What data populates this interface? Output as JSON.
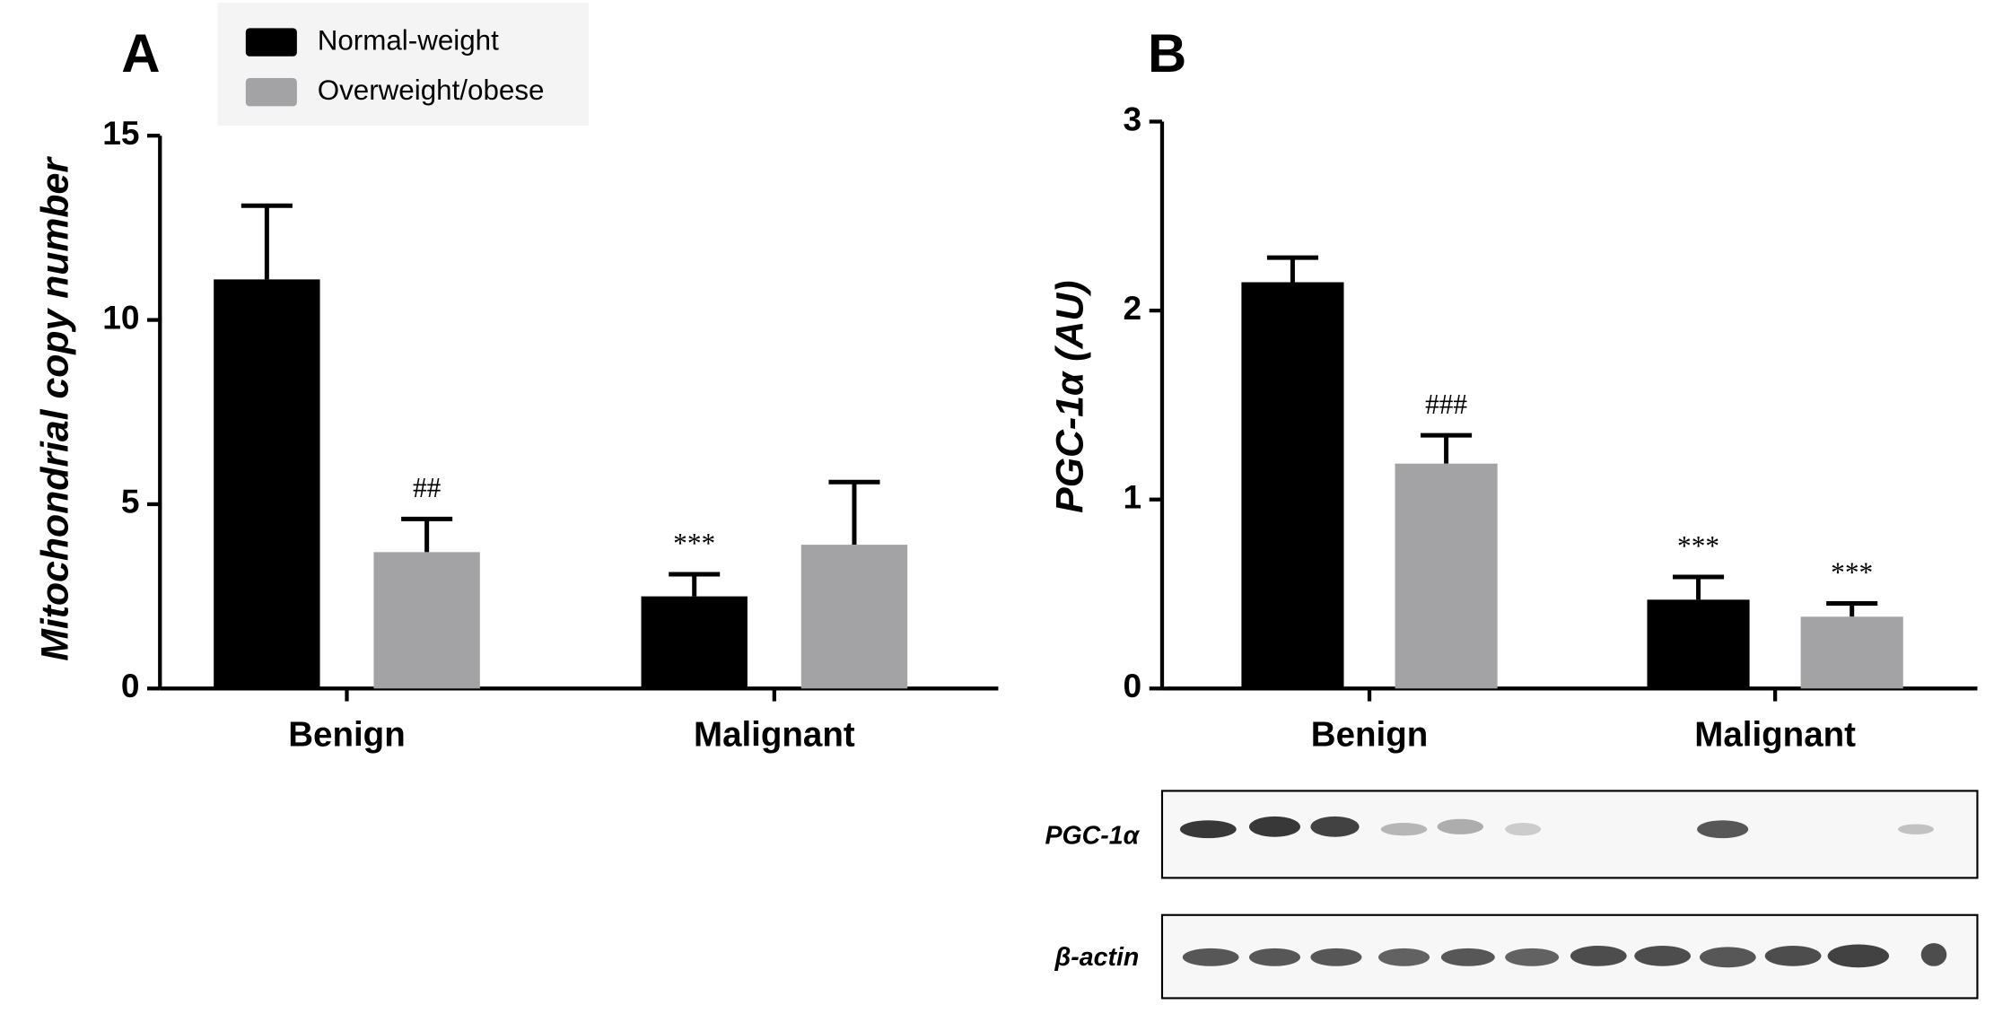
{
  "chart_data": [
    {
      "type": "bar",
      "panel": "A",
      "y_label": "Mitochondrial copy number",
      "categories": [
        "Benign",
        "Malignant"
      ],
      "series": [
        {
          "name": "Normal-weight",
          "color": "#000000",
          "values": [
            11.1,
            2.5
          ],
          "error": [
            2.0,
            0.6
          ],
          "annotations": [
            null,
            "***"
          ]
        },
        {
          "name": "Overweight/obese",
          "color": "#a3a3a5",
          "values": [
            3.7,
            3.9
          ],
          "error": [
            0.9,
            1.7
          ],
          "annotations": [
            "##",
            null
          ]
        }
      ],
      "ylim": [
        0,
        15
      ],
      "yticks": [
        0,
        5,
        10,
        15
      ],
      "legend": "top"
    },
    {
      "type": "bar",
      "panel": "B",
      "y_label": "PGC-1α (AU)",
      "categories": [
        "Benign",
        "Malignant"
      ],
      "series": [
        {
          "name": "Normal-weight",
          "color": "#000000",
          "values": [
            2.15,
            0.47
          ],
          "error": [
            0.13,
            0.12
          ],
          "annotations": [
            null,
            "***"
          ]
        },
        {
          "name": "Overweight/obese",
          "color": "#a3a3a5",
          "values": [
            1.19,
            0.38
          ],
          "error": [
            0.15,
            0.07
          ],
          "annotations": [
            "###",
            "***"
          ]
        }
      ],
      "ylim": [
        0,
        3
      ],
      "yticks": [
        0,
        1,
        2,
        3
      ]
    }
  ],
  "western_blot": {
    "rows": [
      "PGC-1α",
      "β-actin"
    ]
  }
}
